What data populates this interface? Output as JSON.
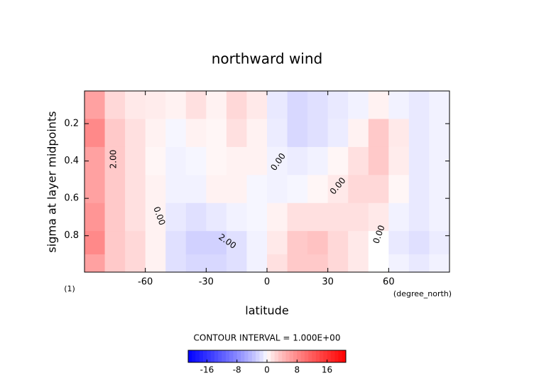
{
  "chart_data": {
    "type": "contour",
    "title": "northward wind",
    "x_label": "latitude",
    "x_unit": "(degree_north)",
    "y_label": "sigma at layer midpoints",
    "panel_label": "(1)",
    "footnote": "CONTOUR INTERVAL = 1.000E+00",
    "x": [
      -85,
      -75,
      -65,
      -55,
      -45,
      -35,
      -25,
      -15,
      -5,
      5,
      15,
      25,
      35,
      45,
      55,
      65,
      75,
      85
    ],
    "y": [
      0.1,
      0.25,
      0.4,
      0.55,
      0.7,
      0.85,
      0.95
    ],
    "z": [
      [
        6,
        2,
        1,
        0.8,
        0.5,
        1.5,
        0.5,
        2,
        1,
        -1,
        -2,
        -1.5,
        -1,
        -0.5,
        0.5,
        -0.5,
        -1,
        -0.5
      ],
      [
        8,
        3,
        1.5,
        0.5,
        -0.3,
        0.5,
        0.3,
        1.5,
        0.5,
        -0.8,
        -2,
        -1.5,
        -0.8,
        0.5,
        3,
        1,
        -1,
        -0.5
      ],
      [
        6,
        3,
        1.5,
        0.3,
        -0.5,
        -0.3,
        0.3,
        0.5,
        0.5,
        -0.5,
        -0.8,
        -0.5,
        0.3,
        1.5,
        3,
        0.8,
        -1,
        -0.5
      ],
      [
        6,
        3,
        1.5,
        0.5,
        -0.5,
        -0.5,
        0.5,
        0.5,
        -0.3,
        -0.5,
        -0.3,
        0.3,
        1,
        2,
        2,
        0.3,
        -1,
        -0.5
      ],
      [
        7,
        3,
        1.5,
        0.5,
        -1,
        -1.5,
        -1,
        -0.5,
        -0.3,
        0.5,
        1.5,
        1.5,
        1.5,
        1.5,
        1,
        -0.5,
        -1,
        -0.5
      ],
      [
        8,
        3,
        2,
        0.5,
        -1.5,
        -2.5,
        -2.5,
        -1.5,
        -0.5,
        1,
        3,
        3.5,
        2,
        1,
        0,
        -1,
        -1.5,
        -0.8
      ],
      [
        6,
        3,
        2,
        0.5,
        -1.5,
        -2,
        -2,
        -1.5,
        -0.5,
        1.5,
        3,
        3,
        2,
        1,
        0,
        -0.5,
        -1,
        -0.5
      ]
    ],
    "xlim": [
      -90,
      90
    ],
    "ylim": [
      0.025,
      0.995
    ],
    "y_inverted": true,
    "xticks": [
      -60,
      -30,
      0,
      30,
      60
    ],
    "yticks": [
      0.2,
      0.4,
      0.6,
      0.8
    ],
    "colorbar": {
      "clim": [
        -21,
        21
      ],
      "ticks": [
        -16,
        -8,
        0,
        8,
        16
      ],
      "low_color": "#0000ff",
      "high_color": "#ff0000"
    },
    "contour_labels": [
      "2.00",
      "0.00",
      "0.00",
      "0.00",
      "2.00",
      "0.00"
    ]
  }
}
